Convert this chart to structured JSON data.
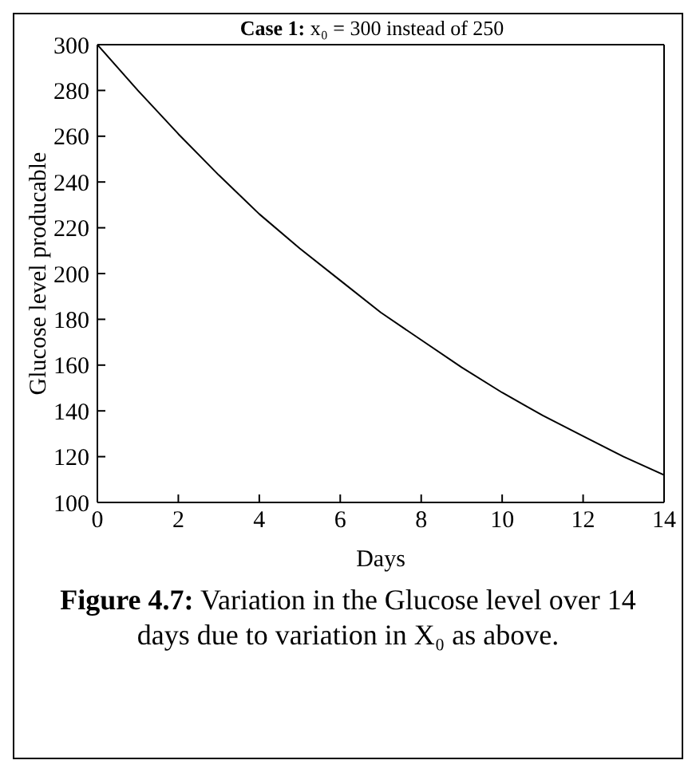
{
  "chart_data": {
    "type": "line",
    "title": "Case 1: x₀ = 300 instead of 250",
    "xlabel": "Days",
    "ylabel": "Glucose level producable",
    "x": [
      0,
      1,
      2,
      3,
      4,
      5,
      6,
      7,
      8,
      9,
      10,
      11,
      12,
      13,
      14
    ],
    "series": [
      {
        "color": "#000000",
        "values": [
          300,
          280,
          261,
          243,
          226,
          211,
          197,
          183,
          171,
          159,
          148,
          138,
          129,
          120,
          112
        ]
      }
    ],
    "xlim": [
      0,
      14
    ],
    "xticks": [
      0,
      2,
      4,
      6,
      8,
      10,
      12,
      14
    ],
    "ylim": [
      100,
      300
    ],
    "yticks": [
      100,
      120,
      140,
      160,
      180,
      200,
      220,
      240,
      260,
      280,
      300
    ],
    "grid": false,
    "legend": false,
    "marker": "none",
    "line_style": "solid",
    "annotations": [
      "Figure 4.7: Variation in the Glucose level over 14 days due to variation in X₀ as above."
    ]
  }
}
